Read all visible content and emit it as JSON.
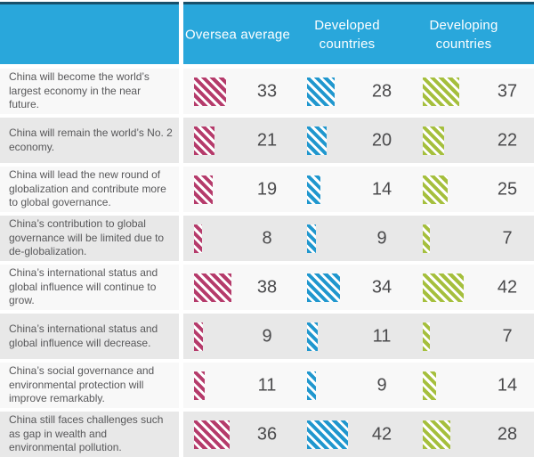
{
  "colors": {
    "header_bg": "#29a7db",
    "header_border": "#17506b",
    "series_pink": "#b53b6b",
    "series_blue": "#2097ce",
    "series_green": "#a5bf3d",
    "row_light": "#f8f8f8",
    "row_dark": "#e8e8e8",
    "label_text": "#58585a",
    "value_text": "#4a4a4c",
    "header_text": "#ffffff"
  },
  "header": {
    "columns": [
      "Oversea average",
      "Developed countries",
      "Developing countries"
    ]
  },
  "chart_data": {
    "type": "bar",
    "orientation": "horizontal",
    "legend_position": "top",
    "grid": false,
    "categories": [
      "China will become the world’s largest economy in the near future.",
      "China will remain the world’s No. 2 economy.",
      "China will lead the new round of globalization and contribute more to global governance.",
      "China’s contribution to global governance will be limited due to de-globalization.",
      "China’s international status and global influence will continue to grow.",
      "China’s international status and global influence will decrease.",
      "China’s social governance and environmental protection will improve remarkably.",
      "China still faces challenges such as gap in wealth and environmental pollution."
    ],
    "series": [
      {
        "name": "Oversea average",
        "color": "#b53b6b",
        "values": [
          33,
          21,
          19,
          8,
          38,
          9,
          11,
          36
        ]
      },
      {
        "name": "Developed countries",
        "color": "#2097ce",
        "values": [
          28,
          20,
          14,
          9,
          34,
          11,
          9,
          42
        ]
      },
      {
        "name": "Developing countries",
        "color": "#a5bf3d",
        "values": [
          37,
          22,
          25,
          7,
          42,
          7,
          14,
          28
        ]
      }
    ]
  }
}
